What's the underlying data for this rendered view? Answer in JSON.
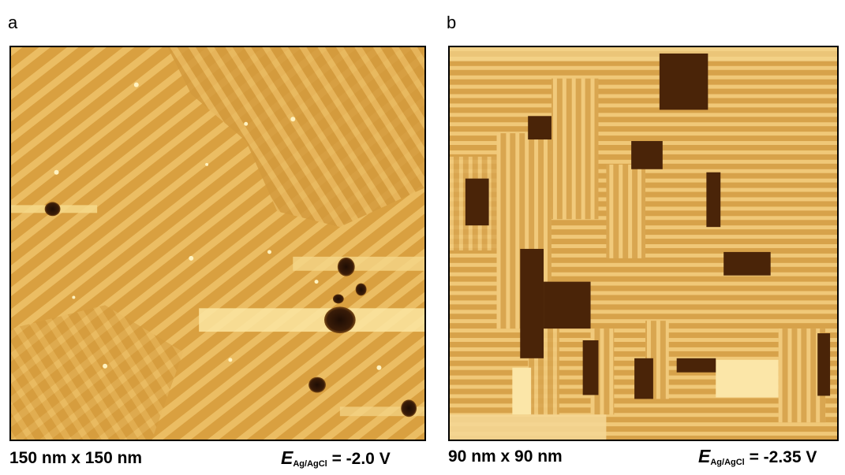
{
  "panel_a": {
    "letter": "a",
    "scale": "150 nm x 150 nm",
    "potential_symbol": "E",
    "potential_subscript": "Ag/AgCl",
    "potential_value": " = -2.0 V"
  },
  "panel_b": {
    "letter": "b",
    "scale": "90 nm x 90 nm",
    "potential_symbol": "E",
    "potential_subscript": "Ag/AgCl",
    "potential_value": " = -2.35 V"
  },
  "colors": {
    "substrate": "#d9a040",
    "stripe_light": "#efc46a",
    "dark_pit": "#2a1408",
    "bright_streak": "#fde9a0"
  }
}
